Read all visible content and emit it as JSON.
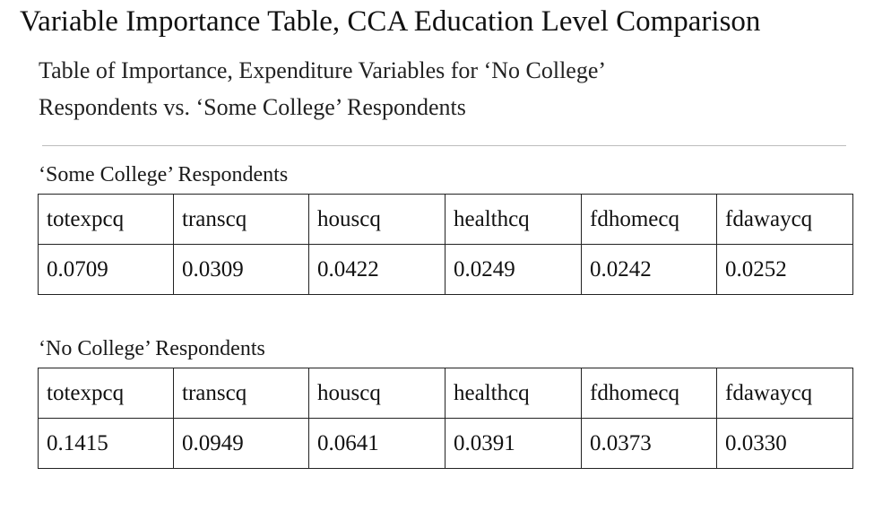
{
  "title": "Variable Importance Table, CCA Education Level Comparison",
  "subtitle": {
    "line1": "Table of Importance, Expenditure Variables for ‘No College’",
    "line2": "Respondents vs. ‘Some College’ Respondents"
  },
  "tables": [
    {
      "label": "‘Some College’ Respondents",
      "headers": [
        "totexpcq",
        "transcq",
        "houscq",
        "healthcq",
        "fdhomecq",
        "fdawaycq"
      ],
      "values": [
        "0.0709",
        "0.0309",
        "0.0422",
        "0.0249",
        "0.0242",
        "0.0252"
      ]
    },
    {
      "label": "‘No College’ Respondents",
      "headers": [
        "totexpcq",
        "transcq",
        "houscq",
        "healthcq",
        "fdhomecq",
        "fdawaycq"
      ],
      "values": [
        "0.1415",
        "0.0949",
        "0.0641",
        "0.0391",
        "0.0373",
        "0.0330"
      ]
    }
  ]
}
